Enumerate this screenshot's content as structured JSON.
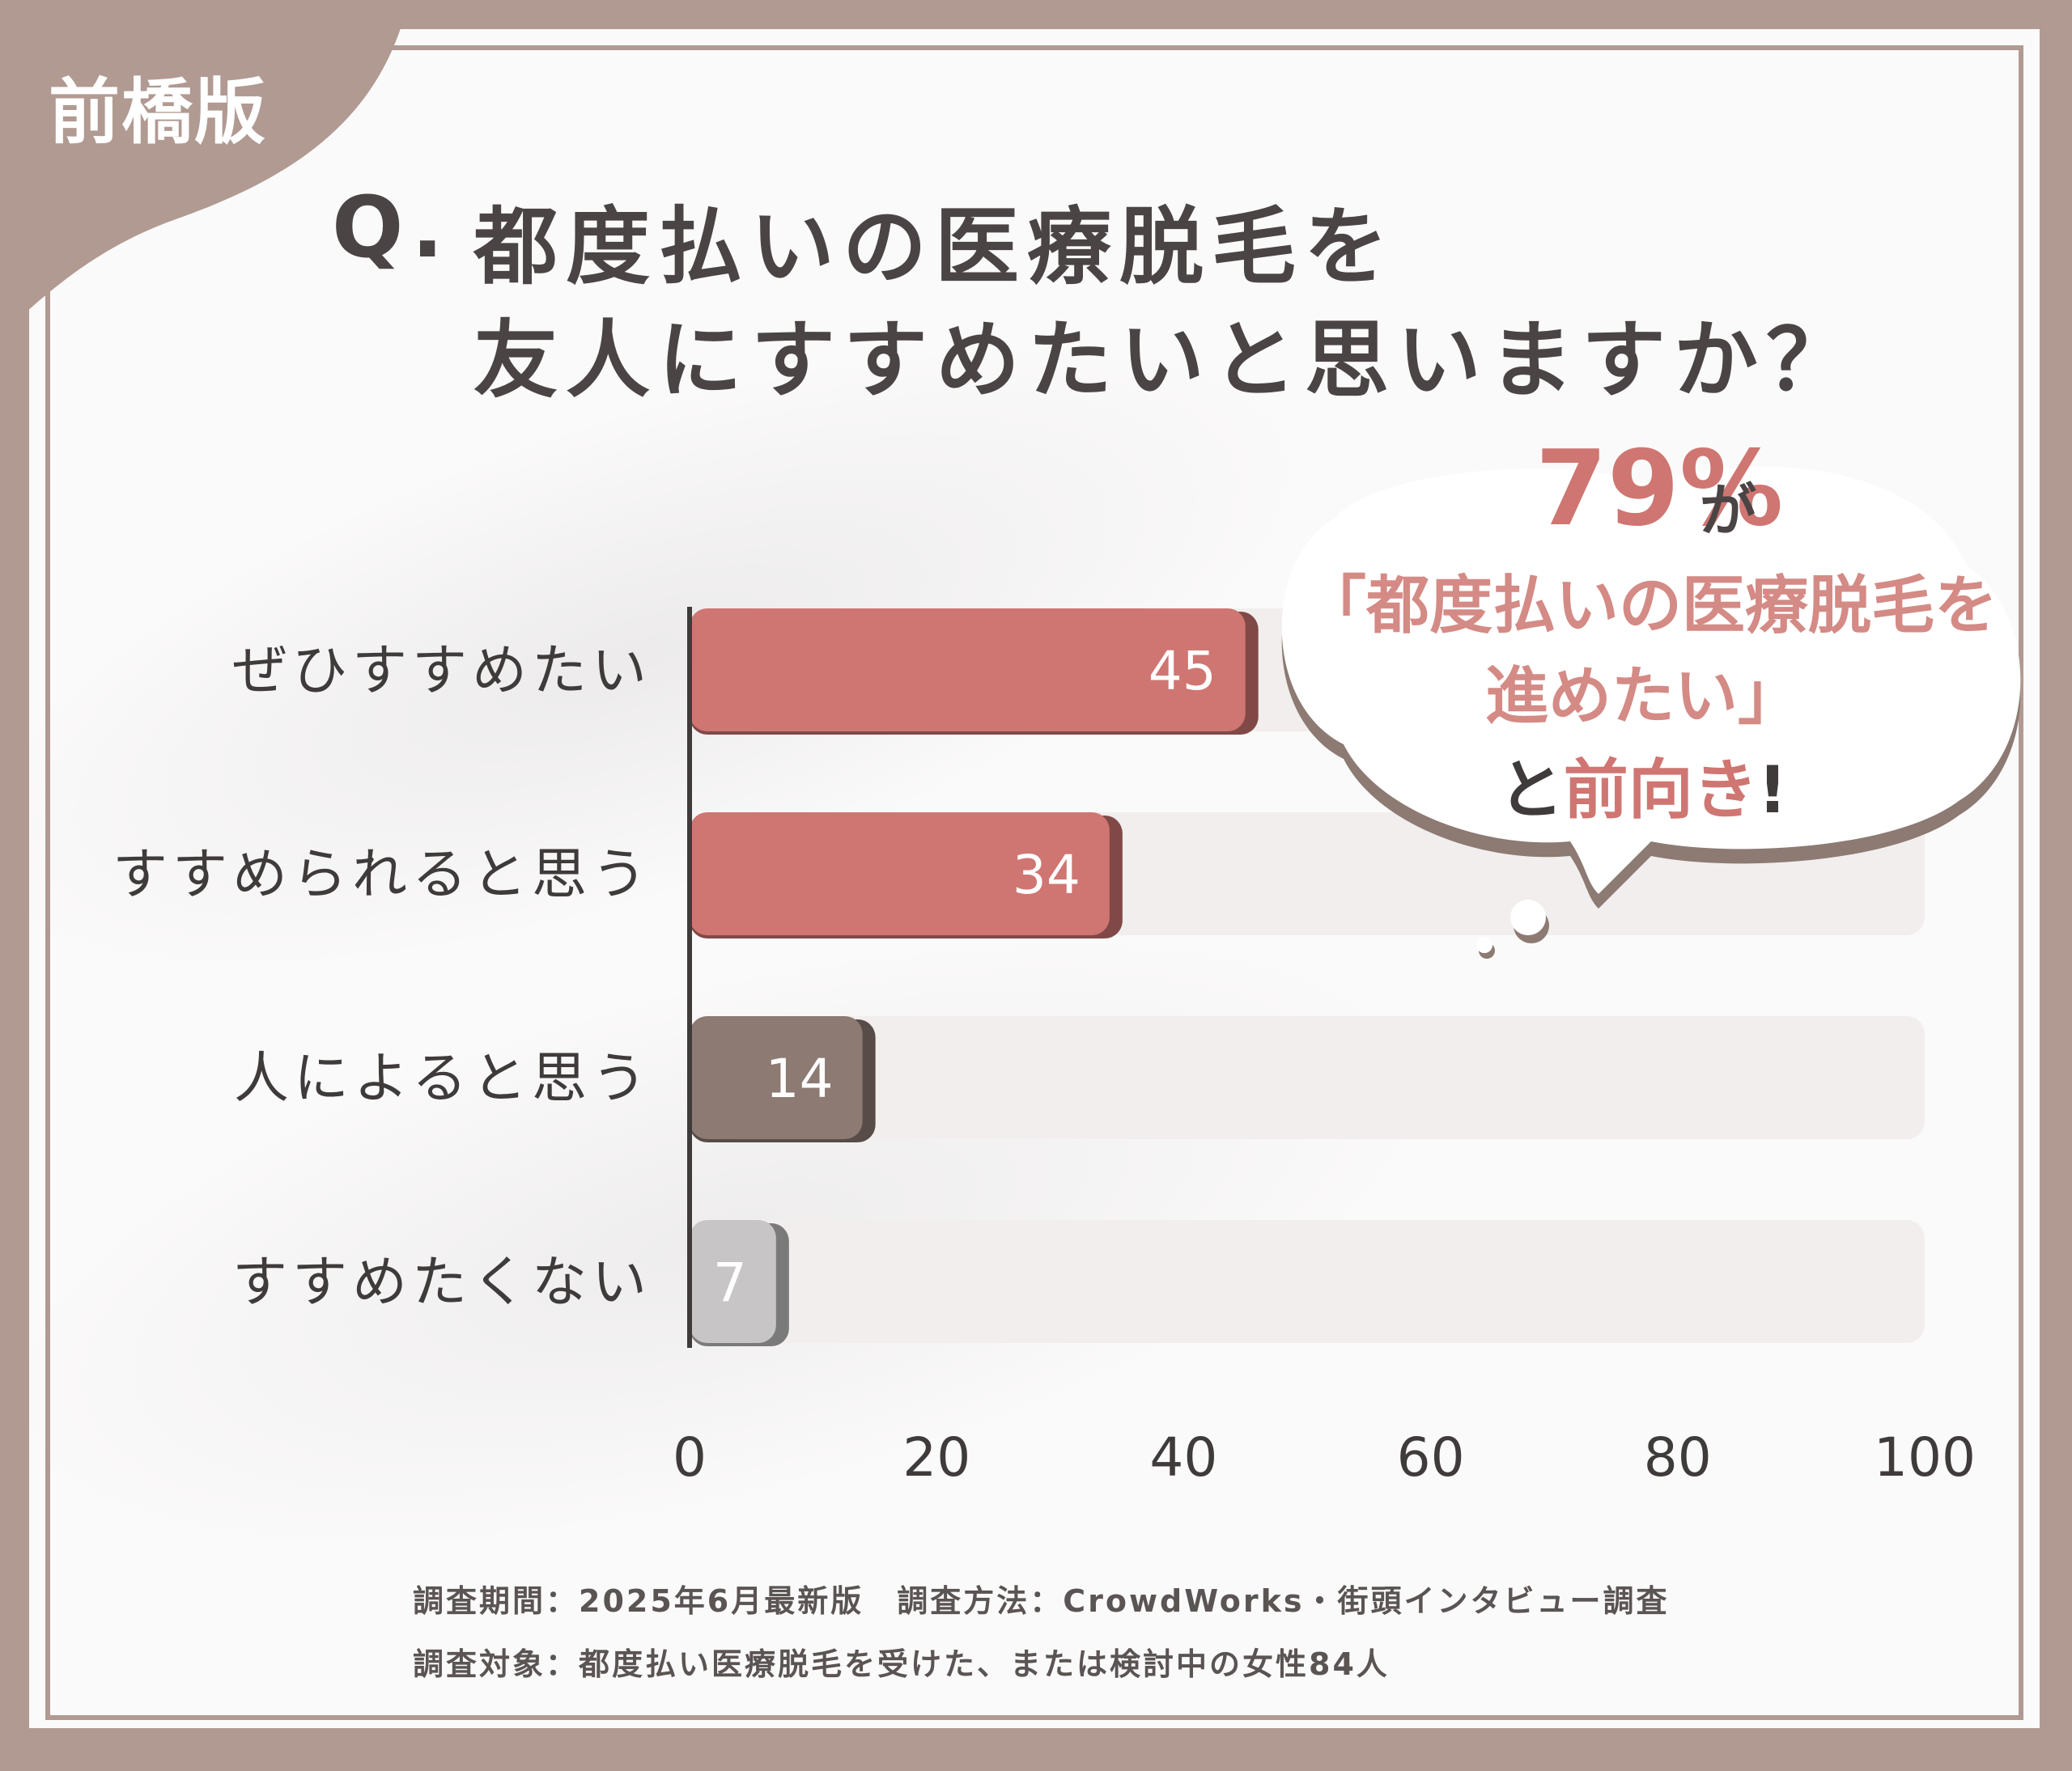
{
  "badge": "前橋版",
  "title": {
    "prefix": "Q.",
    "line1": "都度払いの医療脱毛を",
    "line2": "友人にすすめたいと思いますか？"
  },
  "callout": {
    "percent": "79%",
    "particle": "が",
    "quote_line1": "「都度払いの医療脱毛を",
    "quote_line2": "進めたい」",
    "end_prefix": "と",
    "end_highlight": "前向き",
    "end_suffix": "!"
  },
  "chart_data": {
    "type": "bar",
    "orientation": "horizontal",
    "categories": [
      "ぜひすすめたい",
      "すすめられると思う",
      "人によると思う",
      "すすめたくない"
    ],
    "values": [
      45,
      34,
      14,
      7
    ],
    "xlim": [
      0,
      100
    ],
    "xticks": [
      0,
      20,
      40,
      60,
      80,
      100
    ],
    "colors": [
      "#cf7672",
      "#cf7672",
      "#8c7a73",
      "#c7c5c5"
    ],
    "grid": false,
    "legend": "none"
  },
  "notes": {
    "line1": "調査期間：2025年6月最新版　調査方法：CrowdWorks・街頭インタビュー調査",
    "line2": "調査対象：都度払い医療脱毛を受けた、または検討中の女性84人"
  },
  "colors": {
    "frame": "#b19a92",
    "accent": "#cf7672",
    "text": "#3f3b3a"
  }
}
